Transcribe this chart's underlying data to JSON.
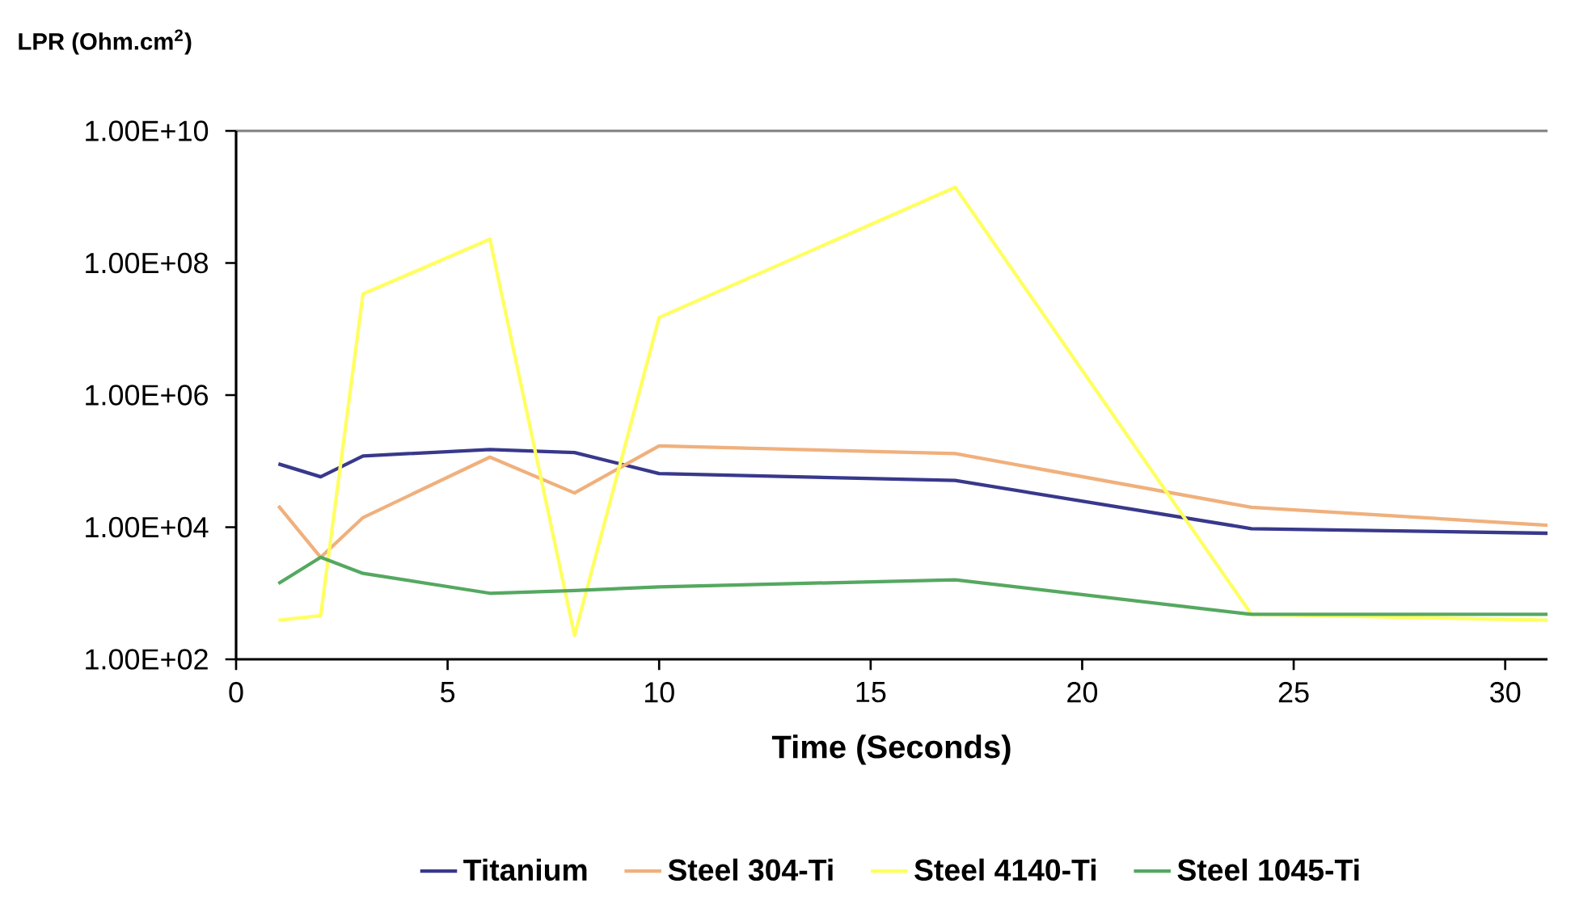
{
  "chart_data": {
    "type": "line",
    "xlabel": "Time (Seconds)",
    "ylabel": "LPR (Ohm.cm$^{2}$)",
    "log": "y",
    "legend": "bottom",
    "marker": "none",
    "line_style": "solid",
    "x": [
      1,
      2,
      3,
      6,
      8,
      10,
      17,
      24,
      31
    ],
    "xlim": [
      0,
      31
    ],
    "xticks": [
      0,
      5,
      10,
      15,
      20,
      25,
      30
    ],
    "ylim": [
      100,
      10000000000
    ],
    "yticks": [
      {
        "value": 100,
        "label": "1.00E+02"
      },
      {
        "value": 10000,
        "label": "1.00E+04"
      },
      {
        "value": 1000000,
        "label": "1.00E+06"
      },
      {
        "value": 100000000,
        "label": "1.00E+08"
      },
      {
        "value": 10000000000,
        "label": "1.00E+10"
      }
    ],
    "series": [
      {
        "name": "Titanium",
        "color": "#38388c",
        "values": [
          91000,
          58000,
          120000,
          150000,
          135000,
          65000,
          51000,
          9500,
          8100
        ]
      },
      {
        "name": "Steel 304-Ti",
        "color": "#f0b07c",
        "values": [
          21000,
          3500,
          14000,
          115000,
          33000,
          170000,
          130000,
          20000,
          10700
        ]
      },
      {
        "name": "Steel 4140-Ti",
        "color": "#ffff60",
        "values": [
          390,
          460,
          34000000,
          230000000,
          230,
          15000000,
          1400000000,
          480,
          390
        ]
      },
      {
        "name": "Steel 1045-Ti",
        "color": "#55a860",
        "values": [
          1400,
          3500,
          2000,
          1000,
          1100,
          1250,
          1600,
          480,
          480
        ]
      }
    ]
  }
}
